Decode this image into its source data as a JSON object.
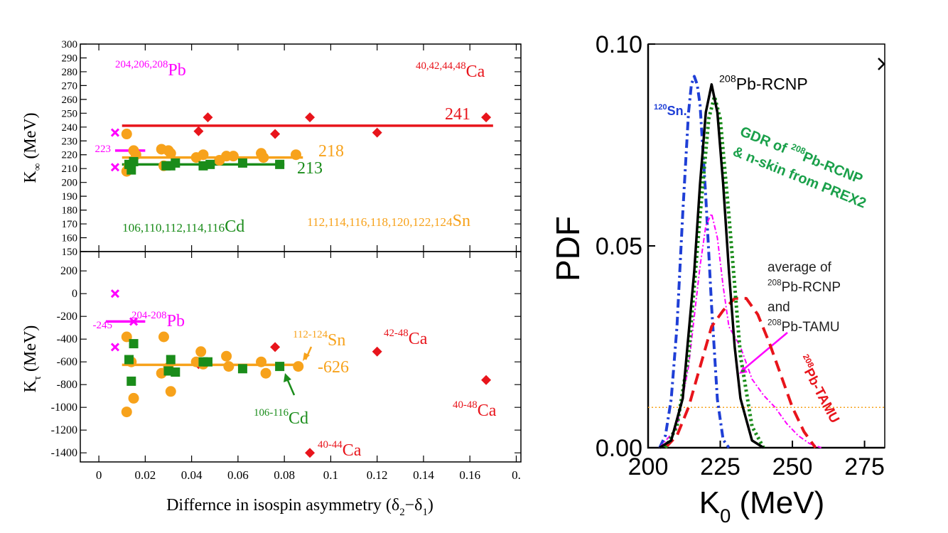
{
  "chart_data": [
    {
      "type": "scatter",
      "ylabel": [
        {
          "text": "K"
        },
        {
          "sub": "∞"
        },
        {
          "text": " (MeV)"
        }
      ],
      "xlim": [
        -0.008,
        0.182
      ],
      "xticks": [
        0,
        0.02,
        0.04,
        0.06,
        0.08,
        0.1,
        0.12,
        0.14,
        0.16,
        0.18
      ],
      "ylim": [
        150,
        300
      ],
      "yticks": [
        150,
        160,
        170,
        180,
        190,
        200,
        210,
        220,
        230,
        240,
        250,
        260,
        270,
        280,
        290,
        300
      ],
      "series": [
        {
          "marker": "diamond",
          "color": "#e8141b",
          "x": [
            0.043,
            0.047,
            0.076,
            0.091,
            0.12,
            0.167
          ],
          "values": [
            237,
            247,
            235,
            247,
            236,
            247
          ]
        },
        {
          "marker": "cross",
          "color": "#ff00ff",
          "x": [
            0.007,
            0.007,
            0.015
          ],
          "values": [
            236,
            211,
            223
          ]
        },
        {
          "marker": "circle",
          "color": "#f7a21b",
          "x": [
            0.012,
            0.012,
            0.013,
            0.015,
            0.016,
            0.027,
            0.028,
            0.03,
            0.031,
            0.042,
            0.045,
            0.052,
            0.055,
            0.058,
            0.07,
            0.071,
            0.085
          ],
          "values": [
            235,
            208,
            212,
            223,
            220,
            224,
            212,
            223,
            221,
            218,
            220,
            216,
            219,
            219,
            221,
            218,
            220
          ]
        },
        {
          "marker": "square",
          "color": "#1a8c1a",
          "x": [
            0.013,
            0.014,
            0.015,
            0.029,
            0.031,
            0.033,
            0.045,
            0.048,
            0.062,
            0.078
          ],
          "values": [
            213,
            209,
            215,
            212,
            212,
            214,
            212,
            213,
            214,
            213
          ]
        }
      ],
      "fits": [
        {
          "value": 241,
          "color": "#e8141b",
          "x": [
            0.01,
            0.17
          ]
        },
        {
          "value": 218,
          "color": "#f7a21b",
          "x": [
            0.01,
            0.088
          ]
        },
        {
          "value": 213,
          "color": "#1a8c1a",
          "x": [
            0.01,
            0.08
          ]
        },
        {
          "value": 223,
          "color": "#ff00ff",
          "x": [
            0.007,
            0.02
          ]
        }
      ],
      "annotations": [
        {
          "color": "#ff00ff",
          "parts": [
            {
              "sup": "204,206,208"
            },
            {
              "text": "Pb"
            }
          ]
        },
        {
          "color": "#e8141b",
          "parts": [
            {
              "sup": "40,42,44,48"
            },
            {
              "text": "Ca"
            }
          ]
        },
        {
          "color": "#1a8c1a",
          "parts": [
            {
              "text": "106,110,112,114,116",
              "small": true
            },
            {
              "text": "Cd"
            }
          ]
        },
        {
          "color": "#f7a21b",
          "parts": [
            {
              "text": "112,114,116,118,120,122,124",
              "small": true
            },
            {
              "text": "Sn"
            }
          ]
        }
      ]
    },
    {
      "type": "scatter",
      "ylabel": [
        {
          "text": "K"
        },
        {
          "sub": "τ"
        },
        {
          "text": " (MeV)"
        }
      ],
      "xlabel": [
        {
          "text": "Differnce in isospin asymmetry (δ"
        },
        {
          "sub": "2"
        },
        {
          "text": "−δ"
        },
        {
          "sub": "1"
        },
        {
          "text": ")"
        }
      ],
      "xlim": [
        -0.008,
        0.182
      ],
      "xticks": [
        0,
        0.02,
        0.04,
        0.06,
        0.08,
        0.1,
        0.12,
        0.14,
        0.16,
        {
          "value": 0.18,
          "label": "0."
        }
      ],
      "ylim": [
        -1480,
        370
      ],
      "yticks": [
        200,
        0,
        -200,
        -400,
        -600,
        -800,
        -1000,
        -1200,
        -1400
      ],
      "series": [
        {
          "marker": "diamond",
          "color": "#e8141b",
          "x": [
            0.043,
            0.076,
            0.12,
            0.167,
            0.091
          ],
          "values": [
            -620,
            -470,
            -510,
            -760,
            -1400
          ]
        },
        {
          "marker": "cross",
          "color": "#ff00ff",
          "x": [
            0.007,
            0.007,
            0.015
          ],
          "values": [
            0,
            -470,
            -245
          ]
        },
        {
          "marker": "circle",
          "color": "#f7a21b",
          "x": [
            0.012,
            0.012,
            0.014,
            0.015,
            0.027,
            0.028,
            0.03,
            0.031,
            0.042,
            0.044,
            0.045,
            0.055,
            0.056,
            0.07,
            0.072,
            0.086
          ],
          "values": [
            -380,
            -1040,
            -600,
            -920,
            -700,
            -380,
            -650,
            -860,
            -600,
            -510,
            -620,
            -550,
            -640,
            -600,
            -700,
            -640
          ]
        },
        {
          "marker": "square",
          "color": "#1a8c1a",
          "x": [
            0.013,
            0.014,
            0.015,
            0.03,
            0.031,
            0.033,
            0.045,
            0.047,
            0.062,
            0.078
          ],
          "values": [
            -580,
            -770,
            -440,
            -680,
            -580,
            -690,
            -600,
            -600,
            -660,
            -640
          ]
        }
      ],
      "fits": [
        {
          "value": -626,
          "color": "#f7a21b",
          "x": [
            0.01,
            0.088
          ]
        },
        {
          "value": -245,
          "color": "#ff00ff",
          "x": [
            0.003,
            0.02
          ]
        }
      ],
      "annotations": [
        {
          "color": "#ff00ff",
          "parts": [
            {
              "sup": "204-208"
            },
            {
              "text": "Pb"
            }
          ]
        },
        {
          "color": "#f7a21b",
          "parts": [
            {
              "sup": "112-124"
            },
            {
              "text": "Sn"
            }
          ]
        },
        {
          "color": "#e8141b",
          "parts": [
            {
              "sup": "42-48"
            },
            {
              "text": "Ca"
            }
          ]
        },
        {
          "color": "#e8141b",
          "parts": [
            {
              "sup": "40-48"
            },
            {
              "text": "Ca"
            }
          ]
        },
        {
          "color": "#e8141b",
          "parts": [
            {
              "sup": "40-44"
            },
            {
              "text": "Ca"
            }
          ]
        },
        {
          "color": "#1a8c1a",
          "parts": [
            {
              "sup": "106-116"
            },
            {
              "text": "Cd"
            }
          ]
        }
      ]
    },
    {
      "type": "line",
      "ylabel": [
        {
          "text": "PDF"
        }
      ],
      "xlabel": [
        {
          "text": "K"
        },
        {
          "sub": "0"
        },
        {
          "text": " (MeV)"
        }
      ],
      "xlim": [
        200,
        282
      ],
      "xticks": [
        200,
        225,
        250,
        275
      ],
      "ylim": [
        0,
        0.1
      ],
      "yticks": [
        {
          "value": 0,
          "label": "0.00"
        },
        {
          "value": 0.05,
          "label": "0.05"
        },
        {
          "value": 0.1,
          "label": "0.10"
        }
      ],
      "reference_line": {
        "value": 0.01,
        "color": "#f7a21b"
      },
      "series": [
        {
          "color": "#1f3fd6",
          "style": "dashdot",
          "x": [
            204,
            206,
            208,
            210,
            212,
            214,
            215,
            216,
            217,
            218,
            220,
            222,
            224,
            226,
            228
          ],
          "values": [
            0,
            0.003,
            0.012,
            0.03,
            0.058,
            0.083,
            0.09,
            0.092,
            0.09,
            0.085,
            0.062,
            0.035,
            0.012,
            0.002,
            0
          ]
        },
        {
          "color": "#ff00ff",
          "style": "thin",
          "x": [
            204,
            210,
            214,
            218,
            220,
            222,
            224,
            226,
            228,
            232,
            236,
            240,
            244,
            248,
            252,
            256,
            260
          ],
          "values": [
            0,
            0.005,
            0.02,
            0.045,
            0.055,
            0.058,
            0.052,
            0.04,
            0.03,
            0.025,
            0.017,
            0.013,
            0.01,
            0.006,
            0.003,
            0.001,
            0
          ]
        },
        {
          "color": "#e8141b",
          "style": "dashed",
          "x": [
            206,
            210,
            214,
            218,
            222,
            226,
            230,
            234,
            238,
            242,
            246,
            250,
            254,
            258
          ],
          "values": [
            0,
            0.003,
            0.01,
            0.02,
            0.03,
            0.034,
            0.037,
            0.037,
            0.033,
            0.026,
            0.018,
            0.01,
            0.004,
            0
          ]
        },
        {
          "color": "#1a8c1a",
          "style": "dotted",
          "x": [
            206,
            210,
            214,
            218,
            221,
            223,
            225,
            228,
            232,
            236,
            240
          ],
          "values": [
            0,
            0.0053,
            0.0228,
            0.0575,
            0.0815,
            0.087,
            0.0815,
            0.0575,
            0.0228,
            0.0053,
            0
          ]
        },
        {
          "color": "#000000",
          "style": "solid",
          "x": [
            204,
            208,
            212,
            216,
            218,
            220,
            222,
            224,
            226,
            228,
            230,
            232,
            236,
            240
          ],
          "values": [
            0,
            0.0018,
            0.0122,
            0.0438,
            0.0654,
            0.0831,
            0.09,
            0.0831,
            0.0654,
            0.0438,
            0.025,
            0.0122,
            0.0018,
            0
          ]
        }
      ],
      "annotations": [
        {
          "color": "#000000",
          "parts": [
            {
              "sup": "208"
            },
            {
              "text": "Pb-RCNP"
            }
          ]
        },
        {
          "color": "#1f3fd6",
          "parts": [
            {
              "sup": "120"
            },
            {
              "text": "Sn."
            }
          ]
        },
        {
          "color": "#1aa04a",
          "parts": [
            {
              "text": "GDR of "
            },
            {
              "sup": "208"
            },
            {
              "text": "Pb-RCNP"
            }
          ]
        },
        {
          "color": "#1aa04a",
          "parts": [
            {
              "text": "& n-skin from PREX2"
            }
          ]
        },
        {
          "color": "#222222",
          "parts": [
            {
              "text": "average of"
            }
          ]
        },
        {
          "color": "#222222",
          "parts": [
            {
              "sup": "208"
            },
            {
              "text": "Pb-RCNP"
            }
          ]
        },
        {
          "color": "#222222",
          "parts": [
            {
              "text": "and"
            }
          ]
        },
        {
          "color": "#222222",
          "parts": [
            {
              "sup": "208"
            },
            {
              "text": "Pb-TAMU"
            }
          ]
        },
        {
          "color": "#e8141b",
          "parts": [
            {
              "sup": "208"
            },
            {
              "text": "Pb-TAMU"
            }
          ]
        }
      ]
    }
  ]
}
